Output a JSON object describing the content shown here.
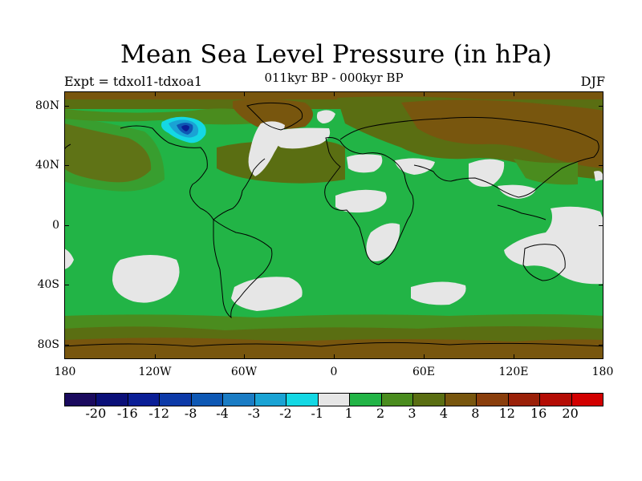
{
  "title": "Mean Sea Level Pressure (in hPa)",
  "expt": "Expt = tdxol1-tdxoa1",
  "period": "011kyr BP - 000kyr BP",
  "season": "DJF",
  "y_axis": [
    "80N",
    "40N",
    "0",
    "40S",
    "80S"
  ],
  "x_axis": [
    "180",
    "120W",
    "60W",
    "0",
    "60E",
    "120E",
    "180"
  ],
  "colorbar": {
    "labels": [
      "-20",
      "-16",
      "-12",
      "-8",
      "-4",
      "-3",
      "-2",
      "-1",
      "1",
      "2",
      "3",
      "4",
      "8",
      "12",
      "16",
      "20"
    ],
    "colors": [
      "#1a0a5e",
      "#0a0f78",
      "#0a1e96",
      "#0d3aa8",
      "#0e58b4",
      "#1a7cc4",
      "#1aa3d4",
      "#14d8e4",
      "#e6e6e6",
      "#22b446",
      "#4a8c1e",
      "#5a6e12",
      "#78560e",
      "#8a3e0c",
      "#9a2008",
      "#b40c04",
      "#d20000"
    ]
  },
  "palette": {
    "ocean_green": "#22b446",
    "dark_green": "#4a8c1e",
    "olive": "#5a6e12",
    "brown": "#78560e",
    "grey": "#e6e6e6",
    "blue": "#1a7cc4"
  }
}
